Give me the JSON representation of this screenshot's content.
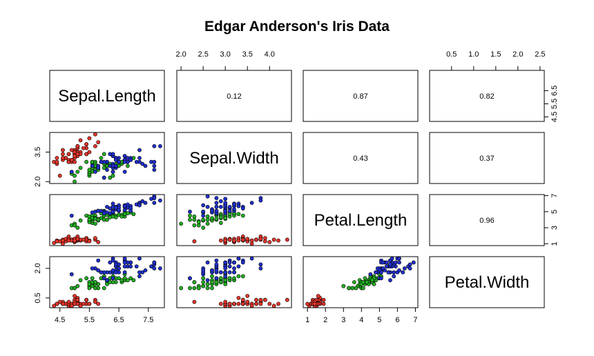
{
  "chart_data": {
    "type": "scatter",
    "subtype": "scatterplot-matrix",
    "title": "Edgar Anderson's Iris Data",
    "variables": [
      "Sepal.Length",
      "Sepal.Width",
      "Petal.Length",
      "Petal.Width"
    ],
    "ranges": [
      [
        4.3,
        7.9
      ],
      [
        2.0,
        4.4
      ],
      [
        1.0,
        6.9
      ],
      [
        0.1,
        2.5
      ]
    ],
    "upper_panels": "correlation",
    "correlations": [
      {
        "row": 0,
        "col": 1,
        "label": "0.12"
      },
      {
        "row": 0,
        "col": 2,
        "label": "0.87"
      },
      {
        "row": 0,
        "col": 3,
        "label": "0.82"
      },
      {
        "row": 1,
        "col": 2,
        "label": "0.43"
      },
      {
        "row": 1,
        "col": 3,
        "label": "0.37"
      },
      {
        "row": 2,
        "col": 3,
        "label": "0.96"
      }
    ],
    "axes": {
      "top": [
        {
          "col": 1,
          "ticks": [
            "2.0",
            "2.5",
            "3.0",
            "3.5",
            "4.0"
          ]
        },
        {
          "col": 3,
          "ticks": [
            "0.5",
            "1.0",
            "1.5",
            "2.0",
            "2.5"
          ]
        }
      ],
      "bottom": [
        {
          "col": 0,
          "ticks": [
            "4.5",
            "5.5",
            "6.5",
            "7.5"
          ]
        },
        {
          "col": 2,
          "ticks": [
            "1",
            "2",
            "3",
            "4",
            "5",
            "6",
            "7"
          ]
        }
      ],
      "left": [
        {
          "row": 1,
          "ticks": [
            "2.0",
            "3.5"
          ]
        },
        {
          "row": 3,
          "ticks": [
            "0.5",
            "2.0"
          ]
        }
      ],
      "right": [
        {
          "row": 0,
          "ticks": [
            "4.5",
            "5.5",
            "6.5"
          ]
        },
        {
          "row": 2,
          "ticks": [
            "1",
            "3",
            "5",
            "7"
          ]
        }
      ]
    },
    "series": [
      {
        "color": "#e8352b",
        "points": [
          [
            5.1,
            3.5,
            1.4,
            0.2
          ],
          [
            4.9,
            3.0,
            1.4,
            0.2
          ],
          [
            4.7,
            3.2,
            1.3,
            0.2
          ],
          [
            4.6,
            3.1,
            1.5,
            0.2
          ],
          [
            5.0,
            3.6,
            1.4,
            0.2
          ],
          [
            5.4,
            3.9,
            1.7,
            0.4
          ],
          [
            4.6,
            3.4,
            1.4,
            0.3
          ],
          [
            5.0,
            3.4,
            1.5,
            0.2
          ],
          [
            4.4,
            2.9,
            1.4,
            0.2
          ],
          [
            4.9,
            3.1,
            1.5,
            0.1
          ],
          [
            5.4,
            3.7,
            1.5,
            0.2
          ],
          [
            4.8,
            3.4,
            1.6,
            0.2
          ],
          [
            4.8,
            3.0,
            1.4,
            0.1
          ],
          [
            4.3,
            3.0,
            1.1,
            0.1
          ],
          [
            5.8,
            4.0,
            1.2,
            0.2
          ],
          [
            5.7,
            4.4,
            1.5,
            0.4
          ],
          [
            5.4,
            3.9,
            1.3,
            0.4
          ],
          [
            5.1,
            3.5,
            1.4,
            0.3
          ],
          [
            5.7,
            3.8,
            1.7,
            0.3
          ],
          [
            5.1,
            3.8,
            1.5,
            0.3
          ],
          [
            5.4,
            3.4,
            1.7,
            0.2
          ],
          [
            5.1,
            3.7,
            1.5,
            0.4
          ],
          [
            4.6,
            3.6,
            1.0,
            0.2
          ],
          [
            5.1,
            3.3,
            1.7,
            0.5
          ],
          [
            4.8,
            3.4,
            1.9,
            0.2
          ],
          [
            5.0,
            3.0,
            1.6,
            0.2
          ],
          [
            5.0,
            3.4,
            1.6,
            0.4
          ],
          [
            5.2,
            3.5,
            1.5,
            0.2
          ],
          [
            5.2,
            3.4,
            1.4,
            0.2
          ],
          [
            4.7,
            3.2,
            1.6,
            0.2
          ],
          [
            4.8,
            3.1,
            1.6,
            0.2
          ],
          [
            5.4,
            3.4,
            1.5,
            0.4
          ],
          [
            5.2,
            4.1,
            1.5,
            0.1
          ],
          [
            5.5,
            4.2,
            1.4,
            0.2
          ],
          [
            4.9,
            3.1,
            1.5,
            0.2
          ],
          [
            5.0,
            3.2,
            1.2,
            0.2
          ],
          [
            5.5,
            3.5,
            1.3,
            0.2
          ],
          [
            4.9,
            3.6,
            1.4,
            0.1
          ],
          [
            4.4,
            3.0,
            1.3,
            0.2
          ],
          [
            5.1,
            3.4,
            1.5,
            0.2
          ],
          [
            5.0,
            3.5,
            1.3,
            0.3
          ],
          [
            4.5,
            2.3,
            1.3,
            0.3
          ],
          [
            4.4,
            3.2,
            1.3,
            0.2
          ],
          [
            5.0,
            3.5,
            1.6,
            0.6
          ],
          [
            5.1,
            3.8,
            1.9,
            0.4
          ],
          [
            4.8,
            3.0,
            1.4,
            0.3
          ],
          [
            5.1,
            3.8,
            1.6,
            0.2
          ],
          [
            4.6,
            3.2,
            1.4,
            0.2
          ],
          [
            5.3,
            3.7,
            1.5,
            0.2
          ],
          [
            5.0,
            3.3,
            1.4,
            0.2
          ]
        ]
      },
      {
        "color": "#22b022",
        "points": [
          [
            7.0,
            3.2,
            4.7,
            1.4
          ],
          [
            6.4,
            3.2,
            4.5,
            1.5
          ],
          [
            6.9,
            3.1,
            4.9,
            1.5
          ],
          [
            5.5,
            2.3,
            4.0,
            1.3
          ],
          [
            6.5,
            2.8,
            4.6,
            1.5
          ],
          [
            5.7,
            2.8,
            4.5,
            1.3
          ],
          [
            6.3,
            3.3,
            4.7,
            1.6
          ],
          [
            4.9,
            2.4,
            3.3,
            1.0
          ],
          [
            6.6,
            2.9,
            4.6,
            1.3
          ],
          [
            5.2,
            2.7,
            3.9,
            1.4
          ],
          [
            5.0,
            2.0,
            3.5,
            1.0
          ],
          [
            5.9,
            3.0,
            4.2,
            1.5
          ],
          [
            6.0,
            2.2,
            4.0,
            1.0
          ],
          [
            6.1,
            2.9,
            4.7,
            1.4
          ],
          [
            5.6,
            2.9,
            3.6,
            1.3
          ],
          [
            6.7,
            3.1,
            4.4,
            1.4
          ],
          [
            5.6,
            3.0,
            4.5,
            1.5
          ],
          [
            5.8,
            2.7,
            4.1,
            1.0
          ],
          [
            6.2,
            2.2,
            4.5,
            1.5
          ],
          [
            5.6,
            2.5,
            3.9,
            1.1
          ],
          [
            5.9,
            3.2,
            4.8,
            1.8
          ],
          [
            6.1,
            2.8,
            4.0,
            1.3
          ],
          [
            6.3,
            2.5,
            4.9,
            1.5
          ],
          [
            6.1,
            2.8,
            4.7,
            1.2
          ],
          [
            6.4,
            2.9,
            4.3,
            1.3
          ],
          [
            6.6,
            3.0,
            4.4,
            1.4
          ],
          [
            6.8,
            2.8,
            4.8,
            1.4
          ],
          [
            6.7,
            3.0,
            5.0,
            1.7
          ],
          [
            6.0,
            2.9,
            4.5,
            1.5
          ],
          [
            5.7,
            2.6,
            3.5,
            1.0
          ],
          [
            5.5,
            2.4,
            3.8,
            1.1
          ],
          [
            5.5,
            2.4,
            3.7,
            1.0
          ],
          [
            5.8,
            2.7,
            3.9,
            1.2
          ],
          [
            6.0,
            2.7,
            5.1,
            1.6
          ],
          [
            5.4,
            3.0,
            4.5,
            1.5
          ],
          [
            6.0,
            3.4,
            4.5,
            1.6
          ],
          [
            6.7,
            3.1,
            4.7,
            1.5
          ],
          [
            6.3,
            2.3,
            4.4,
            1.3
          ],
          [
            5.6,
            3.0,
            4.1,
            1.3
          ],
          [
            5.5,
            2.5,
            4.0,
            1.3
          ],
          [
            5.5,
            2.6,
            4.4,
            1.2
          ],
          [
            6.1,
            3.0,
            4.6,
            1.4
          ],
          [
            5.8,
            2.6,
            4.0,
            1.2
          ],
          [
            5.0,
            2.3,
            3.3,
            1.0
          ],
          [
            5.6,
            2.7,
            4.2,
            1.3
          ],
          [
            5.7,
            3.0,
            4.2,
            1.2
          ],
          [
            5.7,
            2.9,
            4.2,
            1.3
          ],
          [
            6.2,
            2.9,
            4.3,
            1.3
          ],
          [
            5.1,
            2.5,
            3.0,
            1.1
          ],
          [
            5.7,
            2.8,
            4.1,
            1.3
          ]
        ]
      },
      {
        "color": "#2030d0",
        "points": [
          [
            6.3,
            3.3,
            6.0,
            2.5
          ],
          [
            5.8,
            2.7,
            5.1,
            1.9
          ],
          [
            7.1,
            3.0,
            5.9,
            2.1
          ],
          [
            6.3,
            2.9,
            5.6,
            1.8
          ],
          [
            6.5,
            3.0,
            5.8,
            2.2
          ],
          [
            7.6,
            3.0,
            6.6,
            2.1
          ],
          [
            4.9,
            2.5,
            4.5,
            1.7
          ],
          [
            7.3,
            2.9,
            6.3,
            1.8
          ],
          [
            6.7,
            2.5,
            5.8,
            1.8
          ],
          [
            7.2,
            3.6,
            6.1,
            2.5
          ],
          [
            6.5,
            3.2,
            5.1,
            2.0
          ],
          [
            6.4,
            2.7,
            5.3,
            1.9
          ],
          [
            6.8,
            3.0,
            5.5,
            2.1
          ],
          [
            5.7,
            2.5,
            5.0,
            2.0
          ],
          [
            5.8,
            2.8,
            5.1,
            2.4
          ],
          [
            6.4,
            3.2,
            5.3,
            2.3
          ],
          [
            6.5,
            3.0,
            5.5,
            1.8
          ],
          [
            7.7,
            3.8,
            6.7,
            2.2
          ],
          [
            7.7,
            2.6,
            6.9,
            2.3
          ],
          [
            6.0,
            2.2,
            5.0,
            1.5
          ],
          [
            6.9,
            3.2,
            5.7,
            2.3
          ],
          [
            5.6,
            2.8,
            4.9,
            2.0
          ],
          [
            7.7,
            2.8,
            6.7,
            2.0
          ],
          [
            6.3,
            2.7,
            4.9,
            1.8
          ],
          [
            6.7,
            3.3,
            5.7,
            2.1
          ],
          [
            7.2,
            3.2,
            6.0,
            1.8
          ],
          [
            6.2,
            2.8,
            4.8,
            1.8
          ],
          [
            6.1,
            3.0,
            4.9,
            1.8
          ],
          [
            6.4,
            2.8,
            5.6,
            2.1
          ],
          [
            7.2,
            3.0,
            5.8,
            1.6
          ],
          [
            7.4,
            2.8,
            6.1,
            1.9
          ],
          [
            7.9,
            3.8,
            6.4,
            2.0
          ],
          [
            6.4,
            2.8,
            5.6,
            2.2
          ],
          [
            6.3,
            2.8,
            5.1,
            1.5
          ],
          [
            6.1,
            2.6,
            5.6,
            1.4
          ],
          [
            7.7,
            3.0,
            6.1,
            2.3
          ],
          [
            6.3,
            3.4,
            5.6,
            2.4
          ],
          [
            6.4,
            3.1,
            5.5,
            1.8
          ],
          [
            6.0,
            3.0,
            4.8,
            1.8
          ],
          [
            6.9,
            3.1,
            5.4,
            2.1
          ],
          [
            6.7,
            3.1,
            5.6,
            2.4
          ],
          [
            6.9,
            3.1,
            5.1,
            2.3
          ],
          [
            5.8,
            2.7,
            5.1,
            1.9
          ],
          [
            6.8,
            3.2,
            5.9,
            2.3
          ],
          [
            6.7,
            3.3,
            5.7,
            2.5
          ],
          [
            6.7,
            3.0,
            5.2,
            2.3
          ],
          [
            6.3,
            2.5,
            5.0,
            1.9
          ],
          [
            6.5,
            3.0,
            5.2,
            2.0
          ],
          [
            6.2,
            3.4,
            5.4,
            2.3
          ],
          [
            5.9,
            3.0,
            5.1,
            1.8
          ]
        ]
      }
    ]
  }
}
